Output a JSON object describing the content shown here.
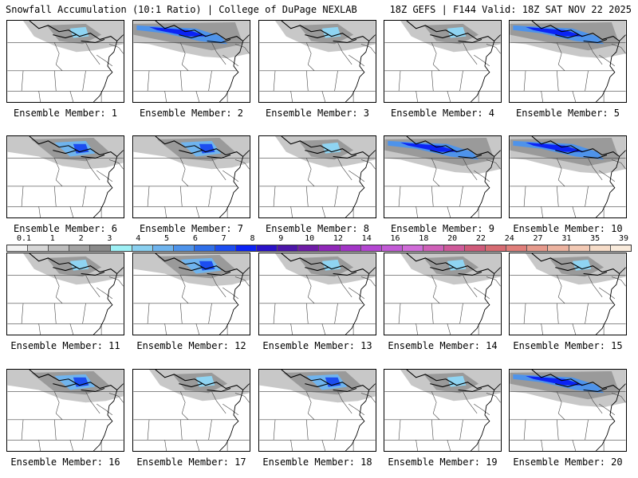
{
  "header": {
    "title_left": "Snowfall Accumulation (10:1 Ratio) | College of DuPage NEXLAB",
    "title_right": "18Z GEFS | F144 Valid: 18Z SAT NOV 22 2025"
  },
  "map_legend": {
    "ticks": [
      "0.1",
      "1",
      "2",
      "3",
      "4",
      "5",
      "6",
      "7",
      "8",
      "9",
      "10",
      "12",
      "14",
      "16",
      "18",
      "20",
      "22",
      "24",
      "27",
      "31",
      "35",
      "39"
    ],
    "colors": [
      "#f2f2f2",
      "#d6d6d6",
      "#bdbdbd",
      "#a3a3a3",
      "#8a8a8a",
      "#9ef0f5",
      "#8ad0f0",
      "#6fb4ee",
      "#4e93ea",
      "#2f6fe8",
      "#1c4df0",
      "#0b23f5",
      "#2a12c8",
      "#4c16a8",
      "#6e1ca6",
      "#8f27b8",
      "#a235c6",
      "#b447d2",
      "#c25ad6",
      "#d06cd8",
      "#cf60b8",
      "#cf5a9a",
      "#cf5a7a",
      "#d66b72",
      "#e07e7a",
      "#e69a8c",
      "#ecb3a0",
      "#f2c9b4",
      "#f6dcc8",
      "#f9ebdc"
    ]
  },
  "panels": [
    {
      "label": "Ensemble Member: 1",
      "snow": "light"
    },
    {
      "label": "Ensemble Member: 2",
      "snow": "band"
    },
    {
      "label": "Ensemble Member: 3",
      "snow": "light"
    },
    {
      "label": "Ensemble Member: 4",
      "snow": "light"
    },
    {
      "label": "Ensemble Member: 5",
      "snow": "band"
    },
    {
      "label": "Ensemble Member: 6",
      "snow": "moderate"
    },
    {
      "label": "Ensemble Member: 7",
      "snow": "moderate"
    },
    {
      "label": "Ensemble Member: 8",
      "snow": "light"
    },
    {
      "label": "Ensemble Member: 9",
      "snow": "band"
    },
    {
      "label": "Ensemble Member: 10",
      "snow": "band"
    },
    {
      "label": "Ensemble Member: 11",
      "snow": "light"
    },
    {
      "label": "Ensemble Member: 12",
      "snow": "moderate"
    },
    {
      "label": "Ensemble Member: 13",
      "snow": "light"
    },
    {
      "label": "Ensemble Member: 14",
      "snow": "light"
    },
    {
      "label": "Ensemble Member: 15",
      "snow": "light"
    },
    {
      "label": "Ensemble Member: 16",
      "snow": "moderate"
    },
    {
      "label": "Ensemble Member: 17",
      "snow": "light"
    },
    {
      "label": "Ensemble Member: 18",
      "snow": "moderate"
    },
    {
      "label": "Ensemble Member: 19",
      "snow": "light"
    },
    {
      "label": "Ensemble Member: 20",
      "snow": "band"
    }
  ]
}
